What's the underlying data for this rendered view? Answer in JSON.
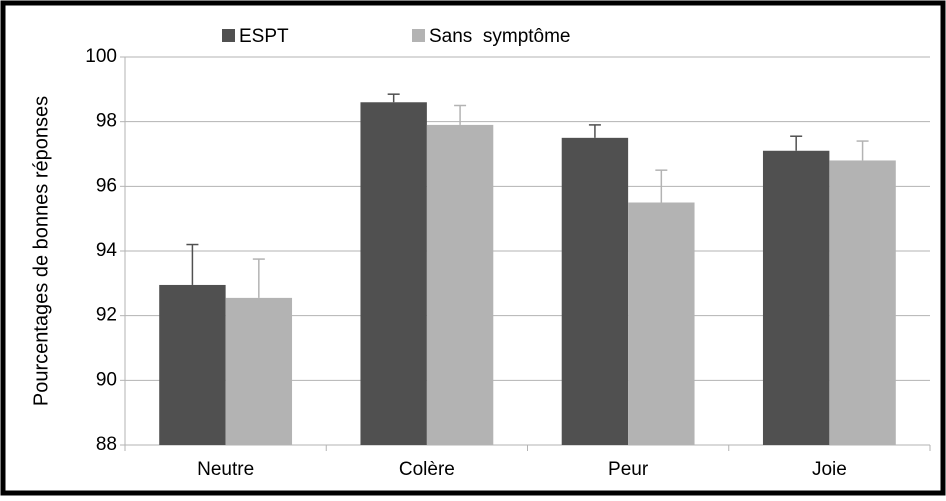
{
  "chart_data": {
    "type": "bar",
    "y_label": "Pourcentages de bonnes réponses",
    "categories": [
      "Neutre",
      "Colère",
      "Peur",
      "Joie"
    ],
    "series": [
      {
        "name": "ESPT",
        "color": "#505050",
        "values": [
          92.95,
          98.6,
          97.5,
          97.1
        ],
        "errors": [
          1.25,
          0.25,
          0.4,
          0.45
        ]
      },
      {
        "name": "Sans  symptôme",
        "color": "#b3b3b3",
        "values": [
          92.55,
          97.9,
          95.5,
          96.8
        ],
        "errors": [
          1.2,
          0.6,
          1.0,
          0.6
        ]
      }
    ],
    "ylim": [
      88,
      100
    ],
    "yticks": [
      88,
      90,
      92,
      94,
      96,
      98,
      100
    ],
    "grid": true,
    "legend": "top"
  }
}
